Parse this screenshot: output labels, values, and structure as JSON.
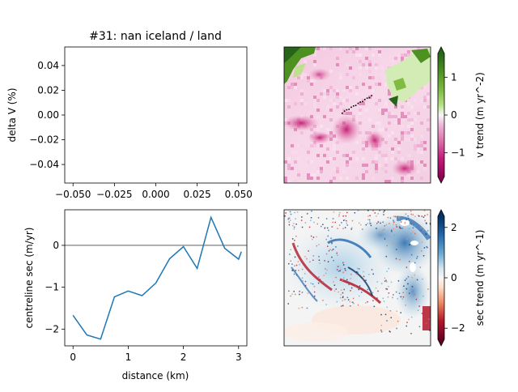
{
  "title": "#31: nan iceland / land",
  "chart_data": [
    {
      "type": "line",
      "panel": "top-left",
      "title": "#31: nan iceland / land",
      "xlabel": "",
      "ylabel": "delta V (%)",
      "xlim": [
        -0.055,
        0.055
      ],
      "ylim": [
        -0.055,
        0.055
      ],
      "xticks": [
        -0.05,
        -0.025,
        0.0,
        0.025,
        0.05
      ],
      "xtick_labels": [
        "−0.050",
        "−0.025",
        "0.000",
        "0.025",
        "0.050"
      ],
      "yticks": [
        0.04,
        0.02,
        0.0,
        -0.02,
        -0.04
      ],
      "ytick_labels": [
        "0.04",
        "0.02",
        "0.00",
        "−0.02",
        "−0.04"
      ],
      "series": []
    },
    {
      "type": "heatmap",
      "panel": "top-right",
      "colormap": "PiYG",
      "colorbar_label": "v trend (m yr^-2)",
      "colorbar_range": [
        -1.8,
        1.8
      ],
      "colorbar_ticks": [
        1,
        0,
        -1
      ],
      "colorbar_tick_labels": [
        "1",
        "0",
        "−1"
      ]
    },
    {
      "type": "line",
      "panel": "bottom-left",
      "xlabel": "distance (km)",
      "ylabel": "centreline sec (m/yr)",
      "xlim": [
        -0.15,
        3.15
      ],
      "ylim": [
        -2.4,
        0.85
      ],
      "xticks": [
        0,
        1,
        2,
        3
      ],
      "xtick_labels": [
        "0",
        "1",
        "2",
        "3"
      ],
      "yticks": [
        0,
        -1,
        -2
      ],
      "ytick_labels": [
        "0",
        "−1",
        "−2"
      ],
      "hline": 0,
      "series": [
        {
          "color": "#1f77b4",
          "x": [
            0.0,
            0.25,
            0.5,
            0.75,
            1.0,
            1.25,
            1.5,
            1.75,
            2.0,
            2.25,
            2.5,
            2.75,
            3.0,
            3.05
          ],
          "y": [
            -1.67,
            -2.14,
            -2.24,
            -1.23,
            -1.09,
            -1.2,
            -0.9,
            -0.32,
            -0.03,
            -0.55,
            0.67,
            -0.07,
            -0.33,
            -0.15
          ]
        }
      ]
    },
    {
      "type": "heatmap",
      "panel": "bottom-right",
      "colormap": "RdBu",
      "colorbar_label": "sec trend (m yr^-1)",
      "colorbar_range": [
        -2.7,
        2.7
      ],
      "colorbar_ticks": [
        2,
        0,
        -2
      ],
      "colorbar_tick_labels": [
        "2",
        "0",
        "−2"
      ]
    }
  ]
}
